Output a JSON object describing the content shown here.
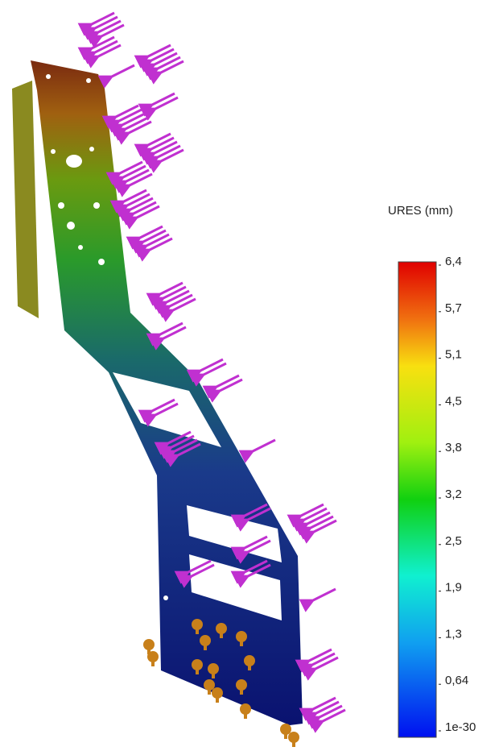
{
  "legend": {
    "title": "URES (mm)",
    "ticks": [
      "6,4",
      "5,7",
      "5,1",
      "4,5",
      "3,8",
      "3,2",
      "2,5",
      "1,9",
      "1,3",
      "0,64",
      "1e-30"
    ]
  }
}
